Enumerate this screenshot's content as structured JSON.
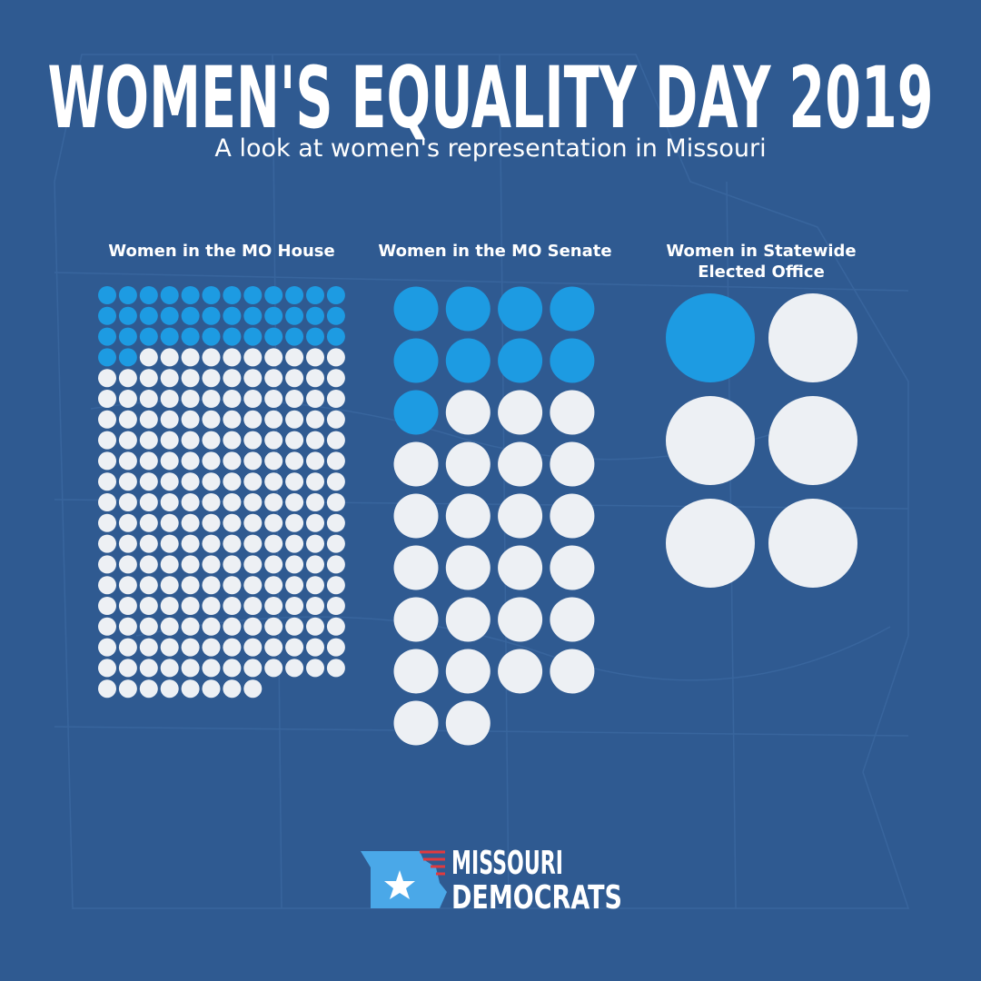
{
  "header": {
    "title": "WOMEN'S EQUALITY DAY 2019",
    "subtitle": "A look at women's representation in Missouri"
  },
  "chart_data": [
    {
      "type": "waffle",
      "title": "Women in the MO House",
      "values": [
        38,
        198
      ],
      "colors": [
        "#1d9be2",
        "#edf0f4"
      ]
    },
    {
      "type": "waffle",
      "title": "Women in the MO Senate",
      "values": [
        9,
        25
      ],
      "colors": [
        "#1d9be2",
        "#edf0f4"
      ]
    },
    {
      "type": "waffle",
      "title": "Women in Statewide Elected Office",
      "values": [
        1,
        5
      ],
      "colors": [
        "#1d9be2",
        "#edf0f4"
      ]
    }
  ],
  "logo": {
    "line1": "MISSOURI",
    "line2": "DEMOCRATS"
  }
}
